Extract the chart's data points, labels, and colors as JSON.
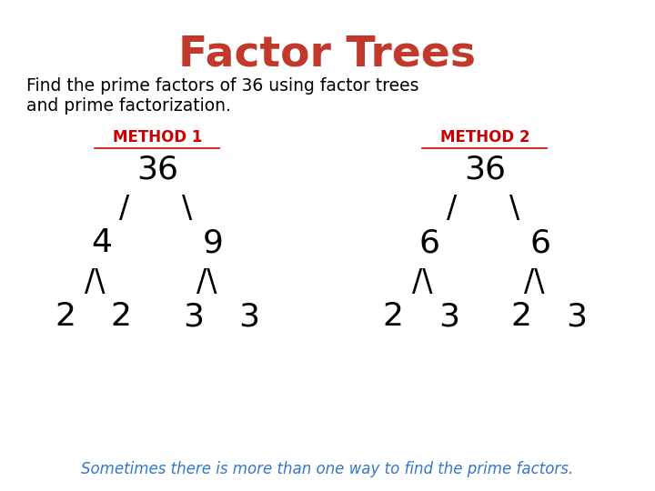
{
  "title": "Factor Trees",
  "title_color": "#c0392b",
  "subtitle_line1": "Find the prime factors of 36 using factor trees",
  "subtitle_line2": "and prime factorization.",
  "subtitle_color": "#000000",
  "method1_label": "METHOD 1",
  "method2_label": "METHOD 2",
  "method_color": "#cc0000",
  "footer": "Sometimes there is more than one way to find the prime factors.",
  "footer_color": "#3377cc",
  "bg_color": "#ffffff"
}
